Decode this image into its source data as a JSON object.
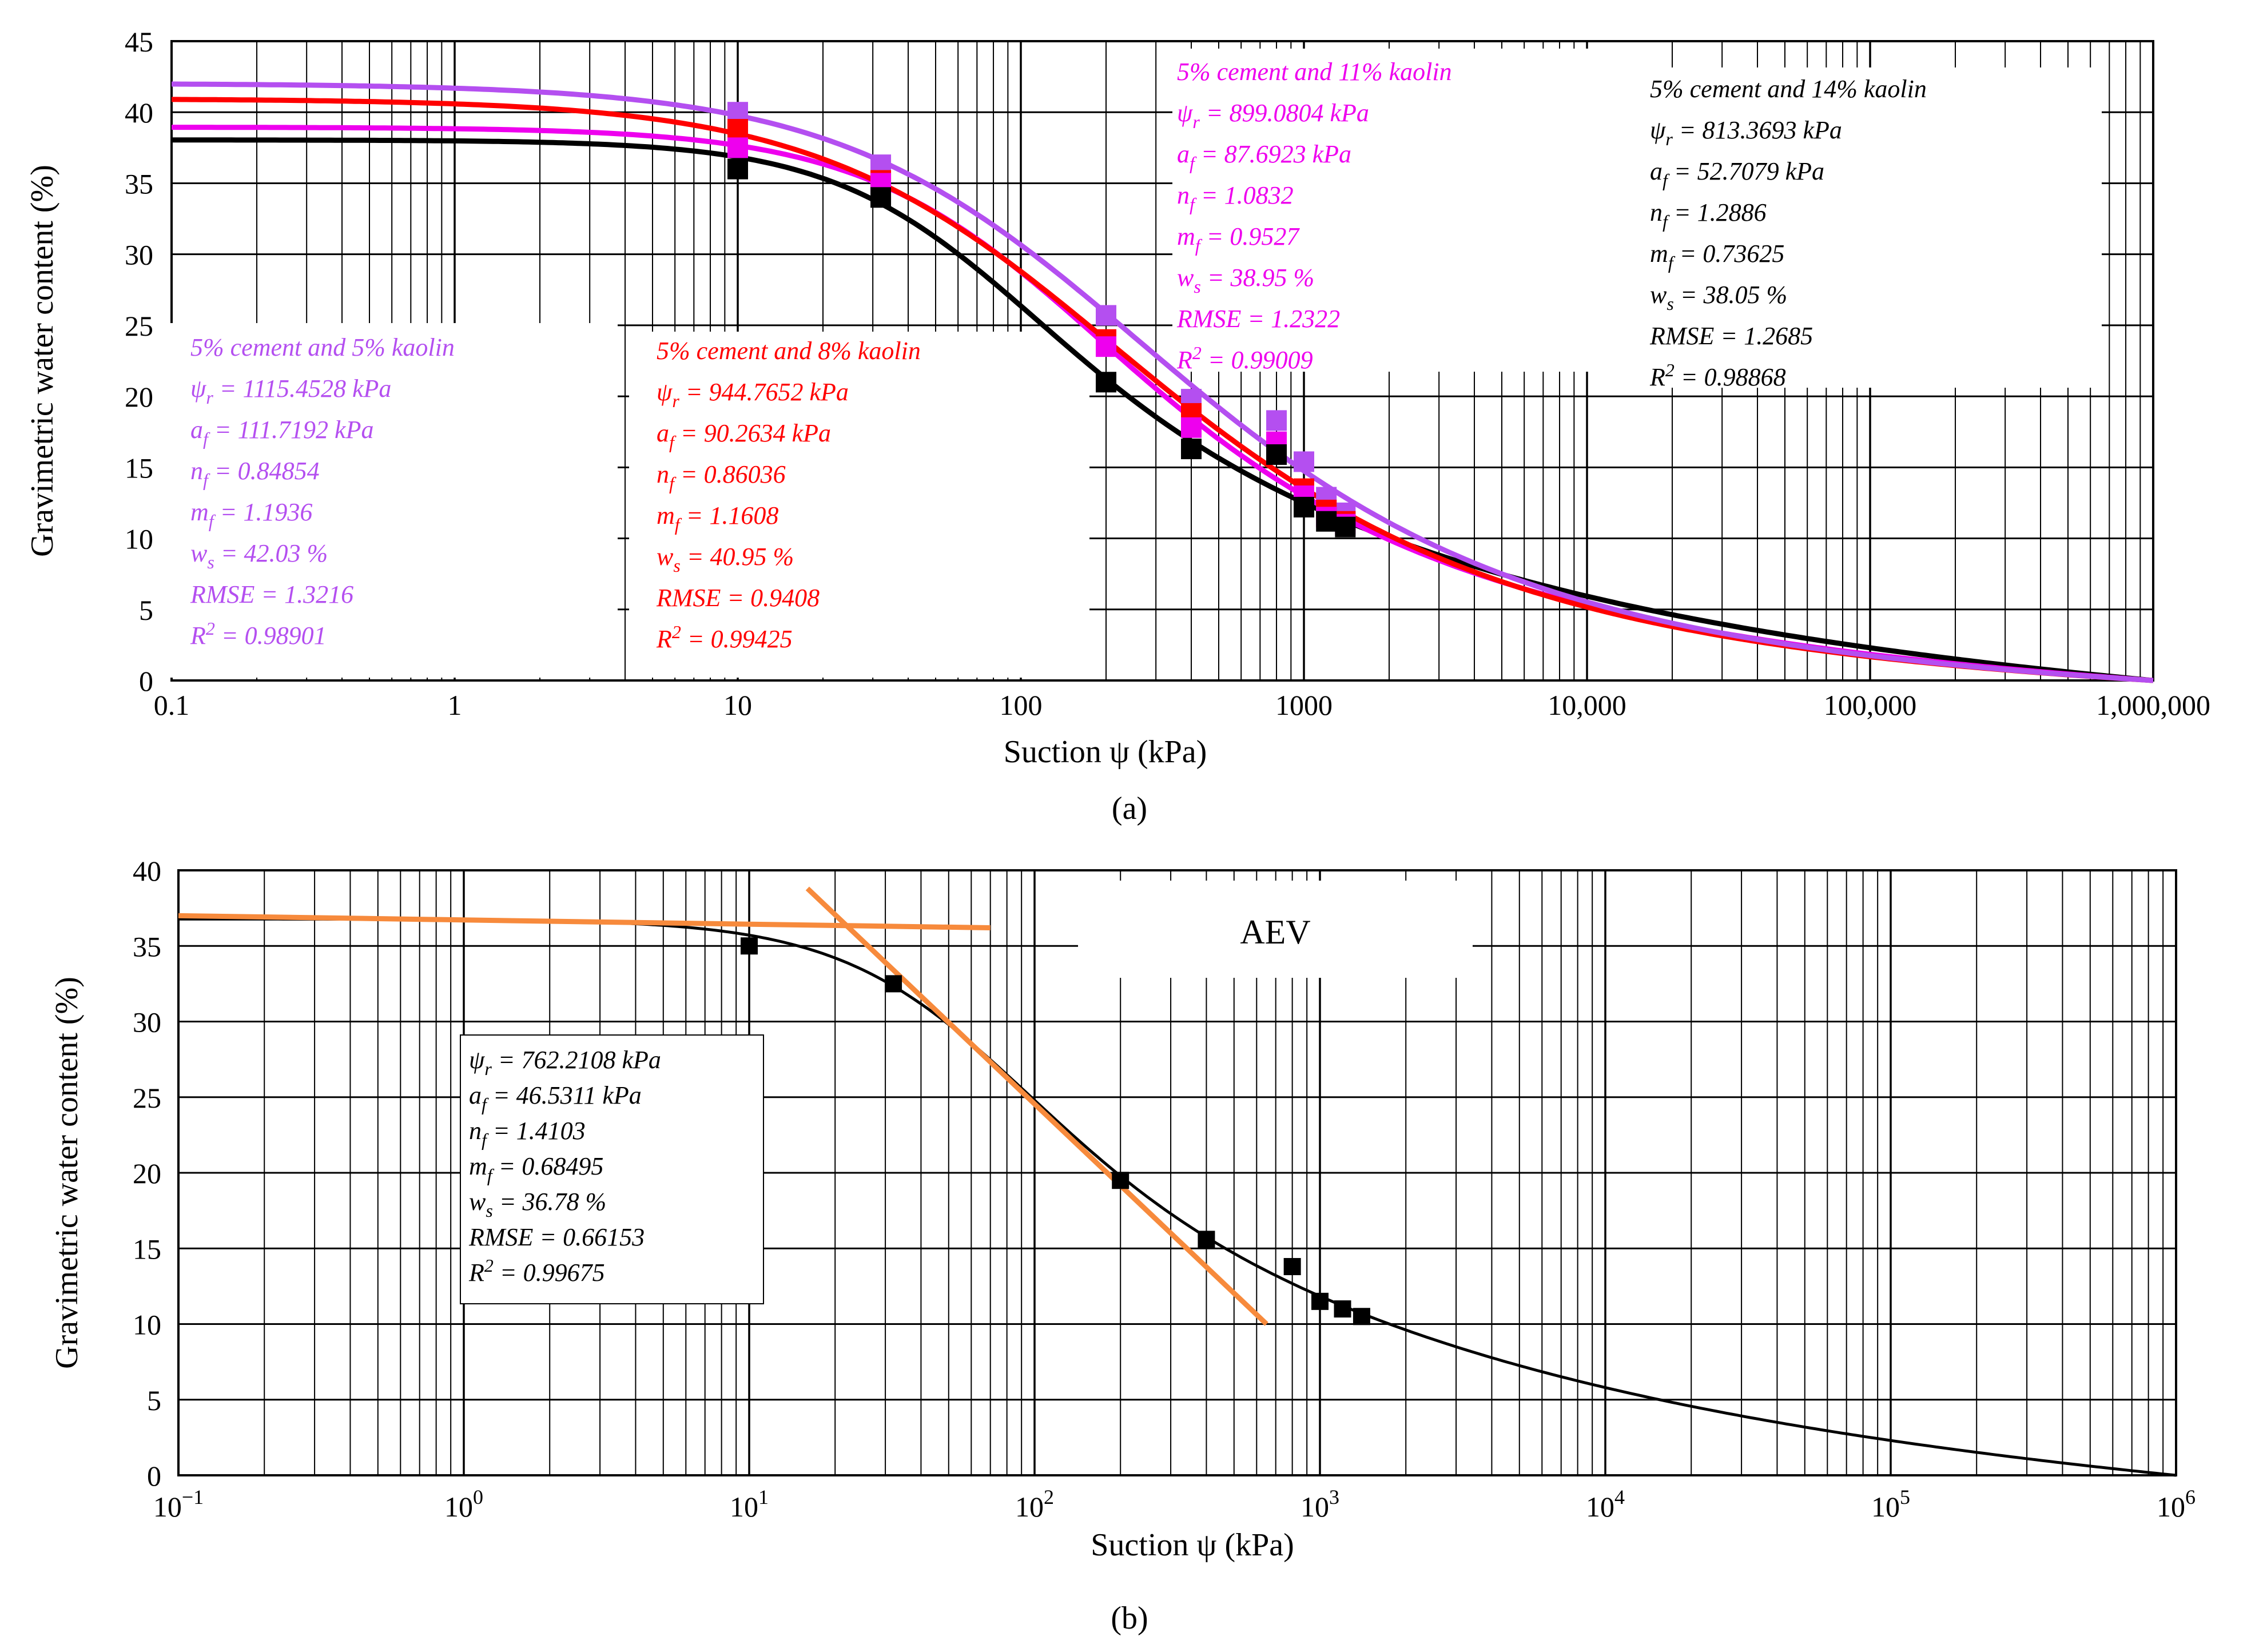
{
  "colors": {
    "wc5": "#b44ff0",
    "wc8": "#ff0000",
    "wc11": "#ee00ee",
    "wc14": "#000000",
    "wc14_marker": "#d05ae8",
    "tangent": "#f78a3c",
    "black": "#000000"
  },
  "chart_data": [
    {
      "panel": "a",
      "caption": "(a)",
      "type": "scatter",
      "xlabel": "Suction ψ (kPa)",
      "ylabel": "Gravimetric water content (%)",
      "xscale": "log",
      "xlim": [
        0.1,
        1000000
      ],
      "ylim": [
        0,
        45
      ],
      "xticks": [
        0.1,
        1,
        10,
        100,
        1000,
        10000,
        100000,
        1000000
      ],
      "xticklabels": [
        "0.1",
        "1",
        "10",
        "100",
        "1000",
        "10,000",
        "100,000",
        "1,000,000"
      ],
      "yticks": [
        0,
        5,
        10,
        15,
        20,
        25,
        30,
        35,
        40,
        45
      ],
      "yticklabels": [
        "0",
        "5",
        "10",
        "15",
        "20",
        "25",
        "30",
        "35",
        "40",
        "45"
      ],
      "grid": true,
      "series": [
        {
          "name": "5% cement and 5% kaolin",
          "color_key": "wc5",
          "marker_color_key": "wc5",
          "params": {
            "psi_r": 1115.4528,
            "a_f": 111.7192,
            "n_f": 0.84854,
            "m_f": 1.1936,
            "w_s": 42.03
          },
          "points": {
            "x": [
              10,
              32,
              200,
              400,
              800,
              1000,
              1200,
              1400
            ],
            "y": [
              40.0,
              36.3,
              25.7,
              19.8,
              18.3,
              15.4,
              12.9,
              11.8
            ]
          },
          "box": [
            "5% cement and 5% kaolin",
            "ψr = 1115.4528 kPa",
            "af = 111.7192 kPa",
            "nf = 0.84854",
            "mf = 1.1936",
            "ws = 42.03 %",
            "RMSE = 1.3216",
            "R2 = 0.98901"
          ]
        },
        {
          "name": "5% cement and 8% kaolin",
          "color_key": "wc8",
          "marker_color_key": "wc8",
          "params": {
            "psi_r": 944.7652,
            "a_f": 90.2634,
            "n_f": 0.86036,
            "m_f": 1.1608,
            "w_s": 40.95
          },
          "points": {
            "x": [
              10,
              32,
              200,
              400,
              800,
              1000,
              1200,
              1400
            ],
            "y": [
              38.8,
              35.2,
              24.0,
              18.8,
              16.2,
              13.5,
              12.0,
              11.2
            ]
          },
          "box": [
            "5% cement and 8% kaolin",
            "ψr = 944.7652 kPa",
            "af = 90.2634 kPa",
            "nf = 0.86036",
            "mf = 1.1608",
            "ws = 40.95 %",
            "RMSE = 0.9408",
            "R2 = 0.99425"
          ]
        },
        {
          "name": "5% cement and 11% kaolin",
          "color_key": "wc11",
          "marker_color_key": "wc11",
          "params": {
            "psi_r": 899.0804,
            "a_f": 87.6923,
            "n_f": 1.0832,
            "m_f": 0.9527,
            "w_s": 38.95
          },
          "points": {
            "x": [
              10,
              32,
              200,
              400,
              800,
              1000,
              1200,
              1400
            ],
            "y": [
              37.5,
              35.0,
              23.5,
              17.8,
              16.8,
              13.0,
              11.5,
              11.0
            ]
          },
          "box": [
            "5% cement and 11% kaolin",
            "ψr = 899.0804 kPa",
            "af = 87.6923 kPa",
            "nf = 1.0832",
            "mf = 0.9527",
            "ws = 38.95 %",
            "RMSE = 1.2322",
            "R2 = 0.99009"
          ]
        },
        {
          "name": "5% cement and 14% kaolin",
          "color_key": "wc14",
          "marker_color_key": "wc14",
          "params": {
            "psi_r": 813.3693,
            "a_f": 52.7079,
            "n_f": 1.2886,
            "m_f": 0.73625,
            "w_s": 38.05
          },
          "points": {
            "x": [
              10,
              32,
              200,
              400,
              800,
              1000,
              1200,
              1400
            ],
            "y": [
              36.0,
              34.0,
              21.0,
              16.3,
              15.9,
              12.2,
              11.2,
              10.8
            ]
          },
          "box": [
            "5% cement and 14% kaolin",
            "ψr = 813.3693 kPa",
            "af = 52.7079 kPa",
            "nf = 1.2886",
            "mf = 0.73625",
            "ws = 38.05 %",
            "RMSE = 1.2685",
            "R2 = 0.98868"
          ]
        }
      ]
    },
    {
      "panel": "b",
      "caption": "(b)",
      "type": "scatter",
      "xlabel": "Suction ψ (kPa)",
      "ylabel": "Gravimetric water content (%)",
      "xscale": "log",
      "xlim": [
        0.1,
        1000000
      ],
      "ylim": [
        0,
        40
      ],
      "xticks": [
        0.1,
        1,
        10,
        100,
        1000,
        10000,
        100000,
        1000000
      ],
      "xtick_mantissa": "10",
      "xtick_exponents": [
        "−1",
        "0",
        "1",
        "2",
        "3",
        "4",
        "5",
        "6"
      ],
      "yticks": [
        0,
        5,
        10,
        15,
        20,
        25,
        30,
        35,
        40
      ],
      "yticklabels": [
        "0",
        "5",
        "10",
        "15",
        "20",
        "25",
        "30",
        "35",
        "40"
      ],
      "grid": true,
      "annotation": "AEV",
      "series": [
        {
          "name": "fitted",
          "color_key": "black",
          "params": {
            "psi_r": 762.2108,
            "a_f": 46.5311,
            "n_f": 1.4103,
            "m_f": 0.68495,
            "w_s": 36.78
          },
          "points": {
            "x": [
              10,
              32,
              200,
              400,
              800,
              1000,
              1200,
              1400
            ],
            "y": [
              35.0,
              32.5,
              19.5,
              15.6,
              13.8,
              11.5,
              11.0,
              10.5
            ]
          },
          "box": [
            "ψr = 762.2108 kPa",
            "af = 46.5311 kPa",
            "nf = 1.4103",
            "mf = 0.68495",
            "ws = 36.78 %",
            "RMSE = 0.66153",
            "R2 = 0.99675"
          ]
        }
      ],
      "tangent_lines": [
        {
          "name": "plateau",
          "x": [
            0.1,
            70
          ],
          "y": [
            37.0,
            36.2
          ]
        },
        {
          "name": "slope",
          "x": [
            16,
            650
          ],
          "y": [
            38.8,
            10.0
          ]
        }
      ]
    }
  ]
}
